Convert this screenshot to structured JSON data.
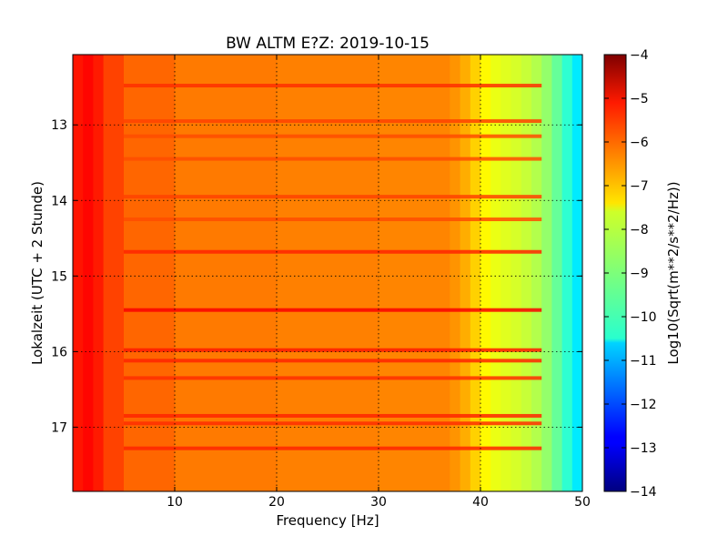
{
  "chart_data": {
    "type": "heatmap",
    "title": "BW ALTM E?Z: 2019-10-15",
    "xlabel": "Frequency [Hz]",
    "ylabel": "Lokalzeit (UTC + 2 Stunde)",
    "xlim": [
      0,
      50
    ],
    "ylim": [
      17.85,
      12.07
    ],
    "x_ticks": [
      10,
      20,
      30,
      40,
      50
    ],
    "x_tick_labels": [
      "10",
      "20",
      "30",
      "40",
      "50"
    ],
    "y_ticks": [
      13,
      14,
      15,
      16,
      17
    ],
    "y_tick_labels": [
      "13",
      "14",
      "15",
      "16",
      "17"
    ],
    "grid": true,
    "colormap": "jet",
    "colorbar": {
      "label": "Log10(Sqrt(m**2/s**2/Hz))",
      "range": [
        -14,
        -4
      ],
      "ticks": [
        -4,
        -5,
        -6,
        -7,
        -8,
        -9,
        -10,
        -11,
        -12,
        -13,
        -14
      ],
      "tick_labels": [
        "−4",
        "−5",
        "−6",
        "−7",
        "−8",
        "−9",
        "−10",
        "−11",
        "−12",
        "−13",
        "−14"
      ]
    },
    "frequency_profile": {
      "frequency_hz": [
        0,
        1,
        2,
        3,
        5,
        10,
        20,
        30,
        37,
        38,
        39,
        40,
        41,
        42,
        43,
        44,
        45,
        46,
        47,
        48,
        49,
        50
      ],
      "value": [
        -5.6,
        -5.3,
        -5.3,
        -5.7,
        -6.1,
        -6.4,
        -6.5,
        -6.5,
        -6.6,
        -6.8,
        -7.1,
        -7.5,
        -7.9,
        -8.0,
        -8.1,
        -8.2,
        -8.4,
        -8.6,
        -9.0,
        -9.5,
        -10.1,
        -10.8
      ]
    },
    "time_bands": [
      {
        "time": 12.48,
        "value": -5.7
      },
      {
        "time": 12.95,
        "value": -5.9
      },
      {
        "time": 13.15,
        "value": -6.0
      },
      {
        "time": 13.45,
        "value": -6.0
      },
      {
        "time": 13.95,
        "value": -5.9
      },
      {
        "time": 14.25,
        "value": -6.0
      },
      {
        "time": 14.68,
        "value": -5.6
      },
      {
        "time": 15.45,
        "value": -5.2
      },
      {
        "time": 15.98,
        "value": -5.5
      },
      {
        "time": 16.12,
        "value": -5.6
      },
      {
        "time": 16.35,
        "value": -5.7
      },
      {
        "time": 16.85,
        "value": -5.6
      },
      {
        "time": 16.95,
        "value": -5.7
      },
      {
        "time": 17.28,
        "value": -5.6
      }
    ]
  }
}
